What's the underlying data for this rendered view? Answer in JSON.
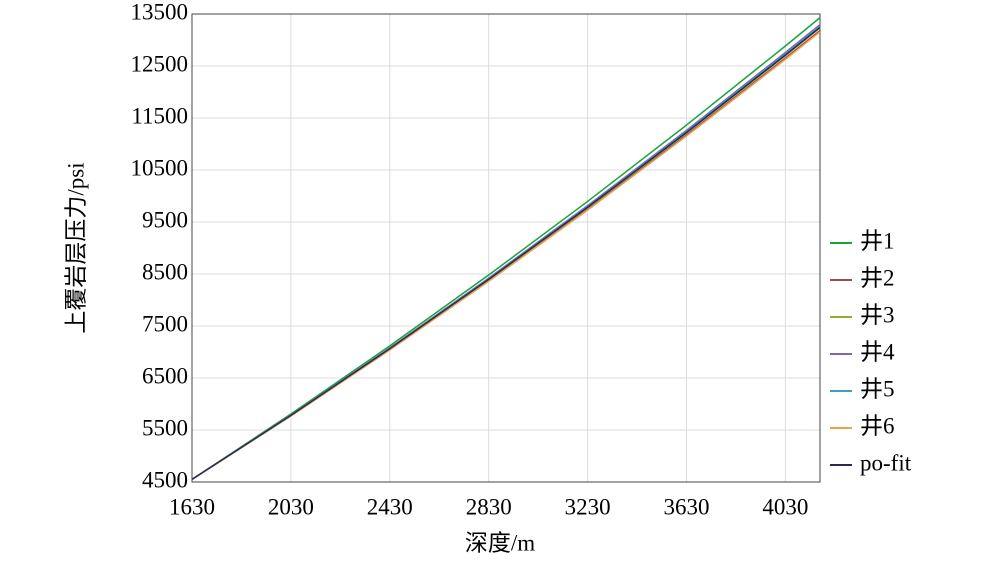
{
  "chart_data": {
    "type": "line",
    "xlabel": "深度/m",
    "ylabel": "上覆岩层压力/psi",
    "x": [
      1630,
      2030,
      2430,
      2830,
      3230,
      3630,
      4030,
      4170
    ],
    "xlim": [
      1630,
      4170
    ],
    "xticks": [
      1630,
      2030,
      2430,
      2830,
      3230,
      3630,
      4030
    ],
    "ylim": [
      4500,
      13500
    ],
    "yticks": [
      4500,
      5500,
      6500,
      7500,
      8500,
      9500,
      10500,
      11500,
      12500,
      13500
    ],
    "grid": true,
    "legend": "right",
    "series": [
      {
        "name": "井1",
        "color": "#1aa33a",
        "values": [
          4550,
          5807,
          7118,
          8480,
          9895,
          11364,
          12885,
          13430
        ]
      },
      {
        "name": "井2",
        "color": "#a04a4a",
        "values": [
          4550,
          5772,
          7046,
          8370,
          9745,
          11173,
          12652,
          13181
        ]
      },
      {
        "name": "井3",
        "color": "#8ab030",
        "values": [
          4550,
          5779,
          7060,
          8392,
          9775,
          11211,
          12697,
          13230
        ]
      },
      {
        "name": "井4",
        "color": "#7b68b0",
        "values": [
          4550,
          5788,
          7079,
          8421,
          9815,
          11262,
          12760,
          13297
        ]
      },
      {
        "name": "井5",
        "color": "#3aa0c8",
        "values": [
          4550,
          5783,
          7069,
          8405,
          9793,
          11235,
          12727,
          13261
        ]
      },
      {
        "name": "井6",
        "color": "#f0a050",
        "values": [
          4550,
          5768,
          7038,
          8358,
          9729,
          11153,
          12627,
          13155
        ]
      },
      {
        "name": "po-fit",
        "color": "#2a2a50",
        "values": [
          4550,
          5781,
          7064,
          8397,
          9783,
          11221,
          12710,
          13244
        ]
      }
    ]
  }
}
